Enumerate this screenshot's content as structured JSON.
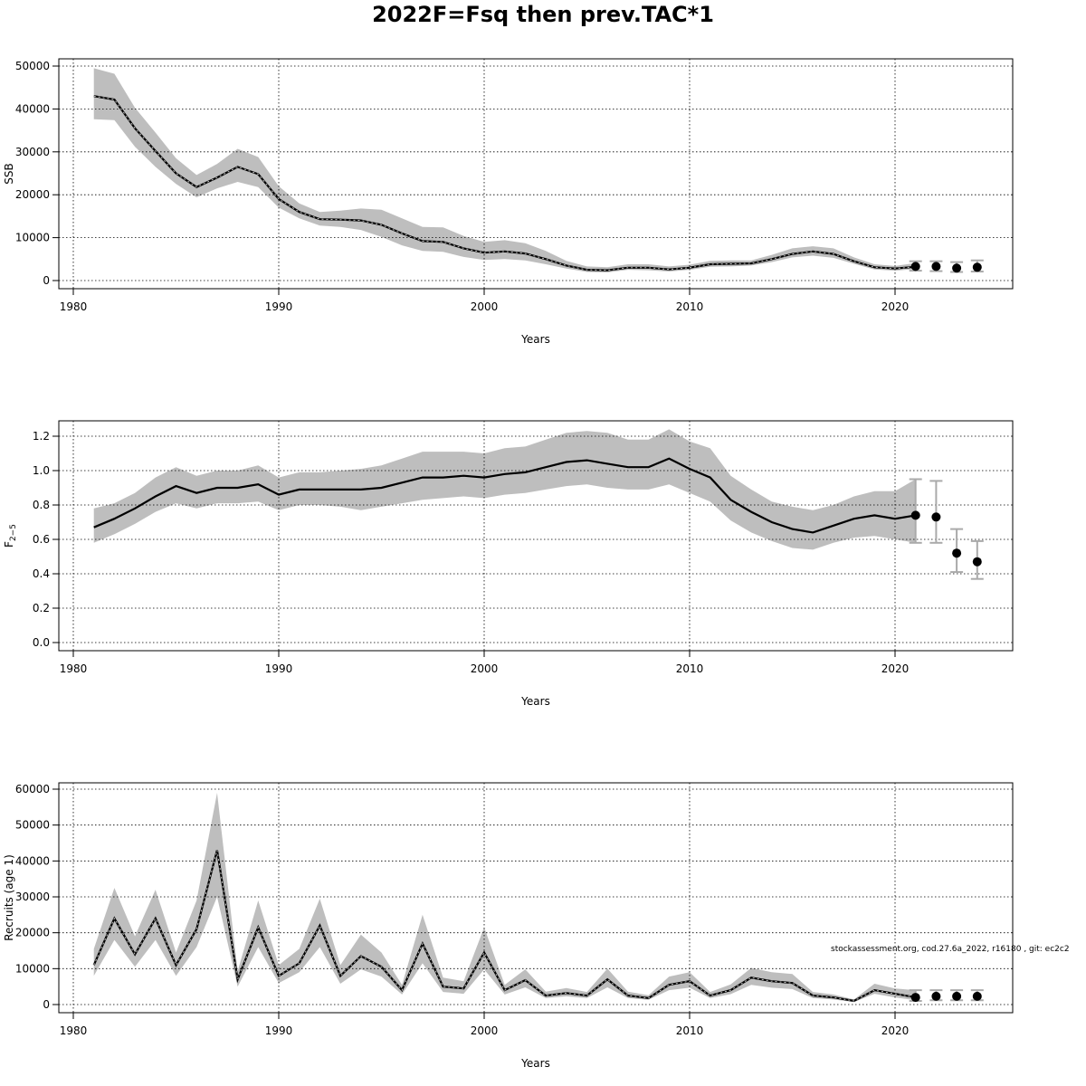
{
  "title": "2022F=Fsq then prev.TAC*1",
  "note": "stockassessment.org, cod.27.6a_2022, r16180 , git: ec2c2",
  "colors": {
    "band": "#bebebe",
    "line": "#000000",
    "errbar": "#aaaaaa",
    "point": "#000000"
  },
  "chart_data": [
    {
      "type": "line",
      "xlabel": "Years",
      "ylabel": "SSB",
      "xlim": [
        1980,
        2025
      ],
      "ylim": [
        0,
        50000
      ],
      "xticks": [
        1980,
        1990,
        2000,
        2010,
        2020
      ],
      "yticks": [
        0,
        10000,
        20000,
        30000,
        40000,
        50000
      ],
      "ytick_labels": [
        "0",
        "10000",
        "20000",
        "30000",
        "40000",
        "50000"
      ],
      "grid": true,
      "series": [
        {
          "x": [
            1981,
            1982,
            1983,
            1984,
            1985,
            1986,
            1987,
            1988,
            1989,
            1990,
            1991,
            1992,
            1993,
            1994,
            1995,
            1996,
            1997,
            1998,
            1999,
            2000,
            2001,
            2002,
            2003,
            2004,
            2005,
            2006,
            2007,
            2008,
            2009,
            2010,
            2011,
            2012,
            2013,
            2014,
            2015,
            2016,
            2017,
            2018,
            2019,
            2020,
            2021
          ],
          "y": [
            43000,
            42200,
            35500,
            30200,
            25000,
            21800,
            24000,
            26500,
            24800,
            19000,
            16000,
            14300,
            14200,
            14000,
            13000,
            11000,
            9200,
            9000,
            7500,
            6500,
            6800,
            6300,
            5000,
            3500,
            2500,
            2400,
            3000,
            3000,
            2600,
            3000,
            3800,
            3900,
            4000,
            5000,
            6200,
            6800,
            6200,
            4500,
            3100,
            2800,
            3200
          ],
          "lower": [
            37600,
            37400,
            31200,
            26500,
            22500,
            19400,
            21500,
            23000,
            21800,
            17000,
            14500,
            12800,
            12500,
            11800,
            10200,
            8200,
            6900,
            6700,
            5500,
            4800,
            5000,
            4700,
            3800,
            2800,
            2000,
            1900,
            2500,
            2400,
            2100,
            2500,
            3200,
            3300,
            3500,
            4300,
            5400,
            5800,
            5300,
            3900,
            2600,
            2300,
            2700
          ],
          "upper": [
            49500,
            48200,
            40300,
            34500,
            28500,
            24600,
            27200,
            30700,
            28800,
            22000,
            18000,
            16000,
            16300,
            16800,
            16500,
            14500,
            12500,
            12400,
            10400,
            9000,
            9400,
            8700,
            6900,
            4600,
            3300,
            3100,
            3800,
            3800,
            3300,
            3700,
            4600,
            4700,
            4700,
            6000,
            7500,
            8000,
            7500,
            5400,
            3800,
            3400,
            4100
          ]
        }
      ],
      "forecast": {
        "x": [
          2021,
          2022,
          2023,
          2024
        ],
        "y": [
          3300,
          3300,
          2900,
          3100
        ],
        "lower": [
          2300,
          2200,
          2000,
          2100
        ],
        "upper": [
          4500,
          4500,
          4300,
          4700
        ]
      }
    },
    {
      "type": "line",
      "xlabel": "Years",
      "ylabel": "F",
      "ylabel_sub": "2−5",
      "xlim": [
        1980,
        2025
      ],
      "ylim": [
        0,
        1.2
      ],
      "xticks": [
        1980,
        1990,
        2000,
        2010,
        2020
      ],
      "yticks": [
        0,
        0.2,
        0.4,
        0.6,
        0.8,
        1.0,
        1.2
      ],
      "ytick_labels": [
        "0.0",
        "0.2",
        "0.4",
        "0.6",
        "0.8",
        "1.0",
        "1.2"
      ],
      "grid": true,
      "series": [
        {
          "x": [
            1981,
            1982,
            1983,
            1984,
            1985,
            1986,
            1987,
            1988,
            1989,
            1990,
            1991,
            1992,
            1993,
            1994,
            1995,
            1996,
            1997,
            1998,
            1999,
            2000,
            2001,
            2002,
            2003,
            2004,
            2005,
            2006,
            2007,
            2008,
            2009,
            2010,
            2011,
            2012,
            2013,
            2014,
            2015,
            2016,
            2017,
            2018,
            2019,
            2020,
            2021
          ],
          "y": [
            0.67,
            0.72,
            0.78,
            0.85,
            0.91,
            0.87,
            0.9,
            0.9,
            0.92,
            0.86,
            0.89,
            0.89,
            0.89,
            0.89,
            0.9,
            0.93,
            0.96,
            0.96,
            0.97,
            0.96,
            0.98,
            0.99,
            1.02,
            1.05,
            1.06,
            1.04,
            1.02,
            1.02,
            1.07,
            1.01,
            0.96,
            0.83,
            0.76,
            0.7,
            0.66,
            0.64,
            0.68,
            0.72,
            0.74,
            0.72,
            0.74
          ],
          "lower": [
            0.58,
            0.63,
            0.69,
            0.76,
            0.81,
            0.78,
            0.81,
            0.81,
            0.82,
            0.77,
            0.8,
            0.8,
            0.79,
            0.77,
            0.79,
            0.81,
            0.83,
            0.84,
            0.85,
            0.84,
            0.86,
            0.87,
            0.89,
            0.91,
            0.92,
            0.9,
            0.89,
            0.89,
            0.92,
            0.87,
            0.82,
            0.71,
            0.64,
            0.59,
            0.55,
            0.54,
            0.58,
            0.61,
            0.62,
            0.6,
            0.58
          ],
          "upper": [
            0.78,
            0.81,
            0.87,
            0.96,
            1.02,
            0.97,
            1.0,
            1.0,
            1.03,
            0.96,
            0.99,
            0.99,
            1.0,
            1.01,
            1.03,
            1.07,
            1.11,
            1.11,
            1.11,
            1.1,
            1.13,
            1.14,
            1.18,
            1.22,
            1.23,
            1.22,
            1.18,
            1.18,
            1.24,
            1.17,
            1.13,
            0.97,
            0.89,
            0.82,
            0.79,
            0.77,
            0.8,
            0.85,
            0.88,
            0.88,
            0.95
          ]
        }
      ],
      "forecast": {
        "x": [
          2021,
          2022,
          2023,
          2024
        ],
        "y": [
          0.74,
          0.73,
          0.52,
          0.47
        ],
        "lower": [
          0.58,
          0.58,
          0.41,
          0.37
        ],
        "upper": [
          0.95,
          0.94,
          0.66,
          0.59
        ]
      }
    },
    {
      "type": "line",
      "xlabel": "Years",
      "ylabel": "Recruits (age 1)",
      "xlim": [
        1980,
        2025
      ],
      "ylim": [
        0,
        60000
      ],
      "xticks": [
        1980,
        1990,
        2000,
        2010,
        2020
      ],
      "yticks": [
        0,
        10000,
        20000,
        30000,
        40000,
        50000,
        60000
      ],
      "ytick_labels": [
        "0",
        "10000",
        "20000",
        "30000",
        "40000",
        "50000",
        "60000"
      ],
      "grid": true,
      "series": [
        {
          "x": [
            1981,
            1982,
            1983,
            1984,
            1985,
            1986,
            1987,
            1988,
            1989,
            1990,
            1991,
            1992,
            1993,
            1994,
            1995,
            1996,
            1997,
            1998,
            1999,
            2000,
            2001,
            2002,
            2003,
            2004,
            2005,
            2006,
            2007,
            2008,
            2009,
            2010,
            2011,
            2012,
            2013,
            2014,
            2015,
            2016,
            2017,
            2018,
            2019,
            2020,
            2021
          ],
          "y": [
            11000,
            24000,
            14000,
            24000,
            11000,
            21000,
            43000,
            7000,
            21500,
            8000,
            11500,
            22000,
            8000,
            13500,
            10500,
            4000,
            17000,
            5000,
            4500,
            14500,
            4000,
            6800,
            2500,
            3200,
            2500,
            7000,
            2500,
            1800,
            5500,
            6500,
            2500,
            4000,
            7500,
            6500,
            6000,
            2500,
            2000,
            1000,
            4000,
            3000,
            2000
          ],
          "lower": [
            8000,
            18000,
            10500,
            18000,
            8000,
            16000,
            30000,
            5000,
            16000,
            6000,
            9000,
            16000,
            5800,
            9800,
            7800,
            2800,
            11500,
            3500,
            3000,
            9800,
            2800,
            4800,
            1800,
            2300,
            1800,
            4800,
            1800,
            1300,
            4000,
            4700,
            1800,
            2900,
            5500,
            4700,
            4300,
            1800,
            1400,
            700,
            3000,
            2000,
            1200
          ],
          "upper": [
            15500,
            32500,
            19000,
            32000,
            14500,
            29000,
            59000,
            9300,
            29000,
            11000,
            15500,
            29500,
            11000,
            19500,
            14500,
            5500,
            25000,
            7500,
            6500,
            21500,
            5500,
            9800,
            3600,
            4600,
            3500,
            10000,
            3600,
            2600,
            7800,
            9000,
            3500,
            5600,
            10200,
            9000,
            8500,
            3500,
            2800,
            1400,
            5800,
            4500,
            4000
          ]
        }
      ],
      "forecast": {
        "x": [
          2021,
          2022,
          2023,
          2024
        ],
        "y": [
          2000,
          2300,
          2300,
          2300
        ],
        "lower": [
          1000,
          1200,
          1200,
          1200
        ],
        "upper": [
          4000,
          4000,
          4000,
          4000
        ]
      }
    }
  ]
}
